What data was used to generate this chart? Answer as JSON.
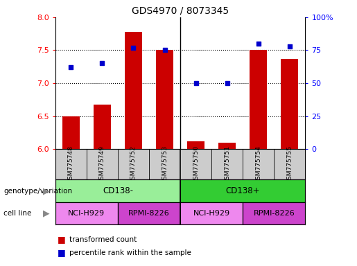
{
  "title": "GDS4970 / 8073345",
  "samples": [
    "GSM775748",
    "GSM775749",
    "GSM775752",
    "GSM775753",
    "GSM775750",
    "GSM775751",
    "GSM775754",
    "GSM775755"
  ],
  "red_values": [
    6.5,
    6.67,
    7.78,
    7.5,
    6.12,
    6.1,
    7.5,
    7.37
  ],
  "blue_values": [
    62,
    65,
    77,
    75,
    50,
    50,
    80,
    78
  ],
  "ylim_left": [
    6.0,
    8.0
  ],
  "ylim_right": [
    0,
    100
  ],
  "yticks_left": [
    6.0,
    6.5,
    7.0,
    7.5,
    8.0
  ],
  "yticks_right": [
    0,
    25,
    50,
    75,
    100
  ],
  "ytick_labels_right": [
    "0",
    "25",
    "50",
    "75",
    "100%"
  ],
  "hlines": [
    6.5,
    7.0,
    7.5
  ],
  "bar_color": "#cc0000",
  "dot_color": "#0000cc",
  "bar_width": 0.55,
  "genotype_groups": [
    {
      "label": "CD138-",
      "start": 0,
      "end": 4,
      "color": "#99ee99"
    },
    {
      "label": "CD138+",
      "start": 4,
      "end": 8,
      "color": "#33cc33"
    }
  ],
  "cell_line_groups": [
    {
      "label": "NCI-H929",
      "start": 0,
      "end": 2,
      "color": "#ee88ee"
    },
    {
      "label": "RPMI-8226",
      "start": 2,
      "end": 4,
      "color": "#cc44cc"
    },
    {
      "label": "NCI-H929",
      "start": 4,
      "end": 6,
      "color": "#ee88ee"
    },
    {
      "label": "RPMI-8226",
      "start": 6,
      "end": 8,
      "color": "#cc44cc"
    }
  ],
  "legend_red_label": "transformed count",
  "legend_blue_label": "percentile rank within the sample",
  "xlabel_genotype": "genotype/variation",
  "xlabel_cellline": "cell line",
  "sample_bg_color": "#cccccc",
  "plot_bg_color": "#ffffff"
}
